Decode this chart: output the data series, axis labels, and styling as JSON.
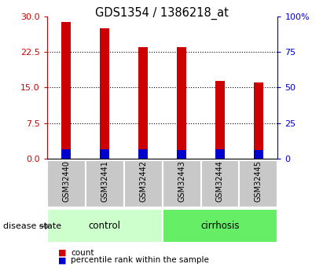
{
  "title": "GDS1354 / 1386218_at",
  "samples": [
    "GSM32440",
    "GSM32441",
    "GSM32442",
    "GSM32443",
    "GSM32444",
    "GSM32445"
  ],
  "count_values": [
    28.8,
    27.5,
    23.5,
    23.5,
    16.3,
    16.0
  ],
  "percentile_values": [
    2.0,
    2.0,
    2.0,
    1.8,
    1.9,
    1.8
  ],
  "groups": [
    {
      "label": "control",
      "indices": [
        0,
        1,
        2
      ],
      "color": "#ccffcc"
    },
    {
      "label": "cirrhosis",
      "indices": [
        3,
        4,
        5
      ],
      "color": "#66ee66"
    }
  ],
  "disease_state_label": "disease state",
  "left_yticks": [
    0,
    7.5,
    15,
    22.5,
    30
  ],
  "right_ytick_vals": [
    0,
    25,
    50,
    75,
    100
  ],
  "left_tick_color": "#cc0000",
  "right_tick_color": "#0000cc",
  "bar_width": 0.25,
  "count_color": "#cc0000",
  "percentile_color": "#0000cc",
  "background_color": "#ffffff",
  "sample_box_color": "#c8c8c8",
  "sample_box_edge": "#ffffff"
}
